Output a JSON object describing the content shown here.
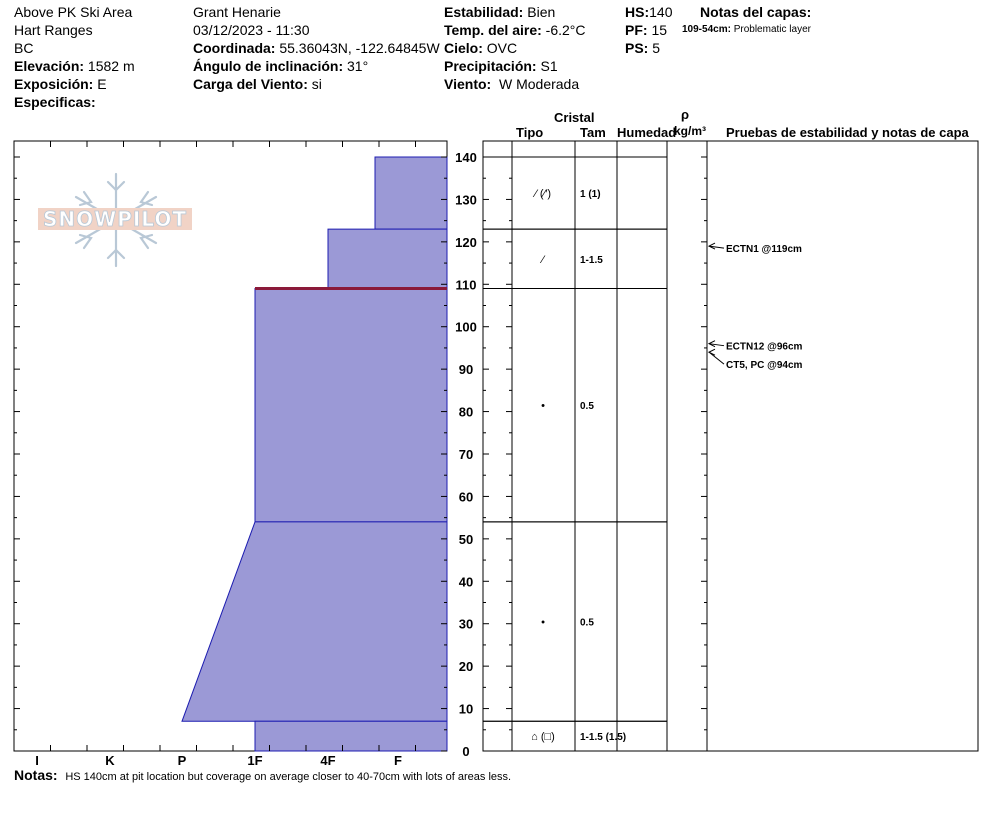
{
  "header": {
    "location": "Above PK Ski Area",
    "range": "Hart Ranges",
    "region": "BC",
    "elevation_label": "Elevación:",
    "elevation_value": "1582 m",
    "aspect_label": "Exposición:",
    "aspect_value": "E",
    "specifics_label": "Especificas:",
    "observer": "Grant Henarie",
    "datetime": "03/12/2023 - 11:30",
    "coord_label": "Coordinada:",
    "coord_value": "55.36043N, -122.64845W",
    "slope_label": "Ángulo de inclinación:",
    "slope_value": "31°",
    "windload_label": "Carga del Viento:",
    "windload_value": "si",
    "stability_label": "Estabilidad:",
    "stability_value": "Bien",
    "airtemp_label": "Temp. del aire:",
    "airtemp_value": "-6.2°C",
    "sky_label": "Cielo:",
    "sky_value": "OVC",
    "precip_label": "Precipitación:",
    "precip_value": "S1",
    "wind_label": "Viento:",
    "wind_value": "W Moderada",
    "hs_label": "HS:",
    "hs_value": "140",
    "pf_label": "PF:",
    "pf_value": "15",
    "ps_label": "PS:",
    "ps_value": "5",
    "layer_notes_label": "Notas del capas:",
    "layer_note_range": "109-54cm:",
    "layer_note_text": "Problematic layer"
  },
  "columns": {
    "cristal": "Cristal",
    "tipo": "Tipo",
    "tam": "Tam",
    "humedad": "Humedad",
    "rho": "ρ",
    "density_unit": "kg/m³",
    "tests": "Pruebas de estabilidad y notas de capa"
  },
  "logo_text": "SNOWPILOT",
  "notes_label": "Notas:",
  "notes_text": "HS 140cm at pit location but coverage on average closer to 40-70cm with lots of areas less.",
  "colors": {
    "layer_fill": "#9b99d6",
    "layer_stroke": "#1c1cb0",
    "problem_line": "#8b1a3a"
  },
  "chart_data": {
    "type": "area",
    "ylabel": "",
    "ylim": [
      0,
      140
    ],
    "yticks": [
      0,
      10,
      20,
      30,
      40,
      50,
      60,
      70,
      80,
      90,
      100,
      110,
      120,
      130,
      140
    ],
    "hardness_scale": [
      "I",
      "K",
      "P",
      "1F",
      "4F",
      "F"
    ],
    "layers": [
      {
        "top": 140,
        "bottom": 123,
        "hardness_top": "4F-",
        "hardness_bottom": "4F-",
        "grain": "⁄ (⁄′)",
        "size": "1 (1)"
      },
      {
        "top": 123,
        "bottom": 109,
        "hardness_top": "4F",
        "hardness_bottom": "4F",
        "grain": "⁄",
        "size": "1-1.5"
      },
      {
        "top": 109,
        "bottom": 54,
        "hardness_top": "1F",
        "hardness_bottom": "1F",
        "grain": "•",
        "size": "0.5"
      },
      {
        "top": 54,
        "bottom": 7,
        "hardness_top": "1F",
        "hardness_bottom": "P",
        "grain": "•",
        "size": "0.5"
      },
      {
        "top": 7,
        "bottom": 0,
        "hardness_top": "1F",
        "hardness_bottom": "1F",
        "grain": "⌂ (□)",
        "size": "1-1.5 (1.5)"
      }
    ],
    "problem_layer_height": 109,
    "tests": [
      {
        "height": 119,
        "text": "ECTN1 @119cm"
      },
      {
        "height": 96,
        "text": "ECTN12 @96cm"
      },
      {
        "height": 94,
        "text": "CT5, PC @94cm"
      }
    ]
  }
}
